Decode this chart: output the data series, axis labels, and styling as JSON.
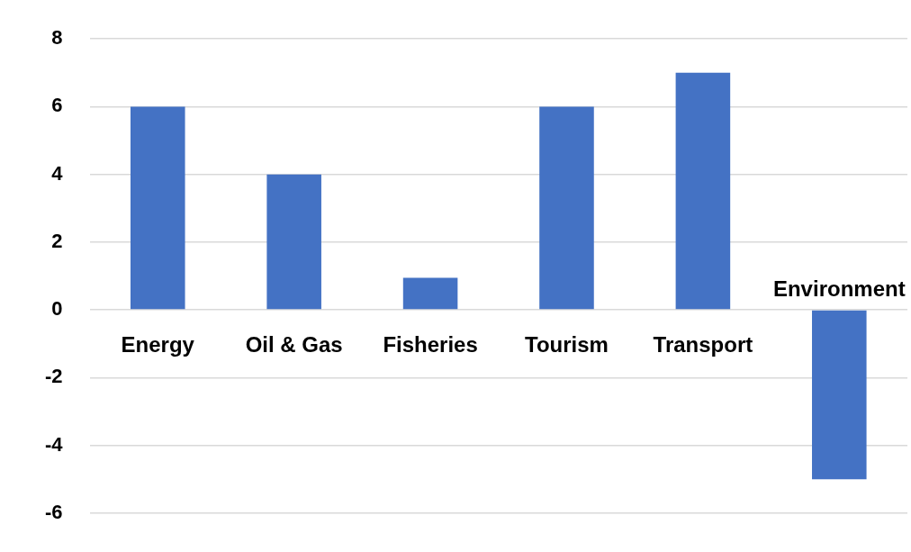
{
  "chart_data": {
    "type": "bar",
    "categories": [
      "Energy",
      "Oil & Gas",
      "Fisheries",
      "Tourism",
      "Transport",
      "Environment"
    ],
    "values": [
      6,
      4,
      0.95,
      6,
      7,
      -5
    ],
    "color": "#4472c4",
    "ylim": [
      -6,
      8
    ],
    "yticks": [
      -6,
      -4,
      -2,
      0,
      2,
      4,
      6,
      8
    ],
    "grid": "y"
  }
}
